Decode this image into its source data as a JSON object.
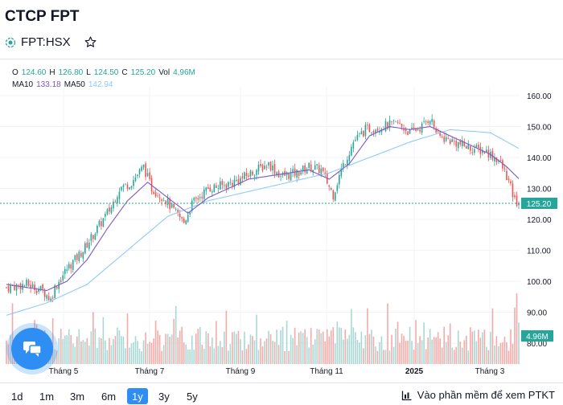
{
  "header": {
    "company_title": "CTCP FPT",
    "ticker": "FPT:HSX"
  },
  "ohlc": {
    "open_label": "O",
    "open": "124.60",
    "high_label": "H",
    "high": "126.80",
    "low_label": "L",
    "low": "124.50",
    "close_label": "C",
    "close": "125.20",
    "vol_label": "Vol",
    "vol": "4,96M"
  },
  "ma": {
    "ma10_label": "MA10",
    "ma10": "133.18",
    "ma50_label": "MA50",
    "ma50": "142.94"
  },
  "colors": {
    "up": "#26a69a",
    "down": "#ef5350",
    "ma10": "#7e57c2",
    "ma50": "#90caf9",
    "accent": "#2f8ef4"
  },
  "chart_data": {
    "type": "candlestick",
    "price_axis": {
      "min": 80,
      "max": 160,
      "ticks": [
        "160.00",
        "150.00",
        "140.00",
        "130.00",
        "120.00",
        "110.00",
        "100.00",
        "90.00",
        "80.00"
      ]
    },
    "time_labels": [
      "Tháng 5",
      "Tháng 7",
      "Tháng 9",
      "Tháng 11",
      "2025",
      "Tháng 3"
    ],
    "last_price_label": "125.20",
    "last_volume_label": "4.96M",
    "price_path": [
      {
        "idx": 0,
        "price": 98
      },
      {
        "idx": 10,
        "price": 99
      },
      {
        "idx": 18,
        "price": 97
      },
      {
        "idx": 22,
        "price": 94
      },
      {
        "idx": 24,
        "price": 98
      },
      {
        "idx": 30,
        "price": 104
      },
      {
        "idx": 38,
        "price": 110
      },
      {
        "idx": 46,
        "price": 118
      },
      {
        "idx": 52,
        "price": 124
      },
      {
        "idx": 56,
        "price": 130
      },
      {
        "idx": 62,
        "price": 132
      },
      {
        "idx": 68,
        "price": 137
      },
      {
        "idx": 72,
        "price": 130
      },
      {
        "idx": 78,
        "price": 127
      },
      {
        "idx": 84,
        "price": 122
      },
      {
        "idx": 88,
        "price": 119
      },
      {
        "idx": 92,
        "price": 125
      },
      {
        "idx": 100,
        "price": 130
      },
      {
        "idx": 108,
        "price": 131
      },
      {
        "idx": 116,
        "price": 133
      },
      {
        "idx": 124,
        "price": 136
      },
      {
        "idx": 130,
        "price": 138
      },
      {
        "idx": 136,
        "price": 134
      },
      {
        "idx": 144,
        "price": 135
      },
      {
        "idx": 150,
        "price": 137
      },
      {
        "idx": 156,
        "price": 136
      },
      {
        "idx": 162,
        "price": 128
      },
      {
        "idx": 166,
        "price": 136
      },
      {
        "idx": 172,
        "price": 145
      },
      {
        "idx": 178,
        "price": 149
      },
      {
        "idx": 186,
        "price": 150
      },
      {
        "idx": 194,
        "price": 151
      },
      {
        "idx": 200,
        "price": 148
      },
      {
        "idx": 206,
        "price": 150
      },
      {
        "idx": 210,
        "price": 153
      },
      {
        "idx": 214,
        "price": 147
      },
      {
        "idx": 222,
        "price": 145
      },
      {
        "idx": 230,
        "price": 143
      },
      {
        "idx": 238,
        "price": 142
      },
      {
        "idx": 244,
        "price": 139
      },
      {
        "idx": 248,
        "price": 134
      },
      {
        "idx": 252,
        "price": 126
      },
      {
        "idx": 254,
        "price": 125.2
      }
    ],
    "ma10_path": [
      {
        "idx": 0,
        "price": 99
      },
      {
        "idx": 20,
        "price": 97
      },
      {
        "idx": 30,
        "price": 100
      },
      {
        "idx": 40,
        "price": 107
      },
      {
        "idx": 50,
        "price": 117
      },
      {
        "idx": 60,
        "price": 126
      },
      {
        "idx": 70,
        "price": 132
      },
      {
        "idx": 80,
        "price": 127
      },
      {
        "idx": 90,
        "price": 122
      },
      {
        "idx": 100,
        "price": 127
      },
      {
        "idx": 110,
        "price": 130
      },
      {
        "idx": 120,
        "price": 133
      },
      {
        "idx": 130,
        "price": 134
      },
      {
        "idx": 140,
        "price": 135
      },
      {
        "idx": 150,
        "price": 136
      },
      {
        "idx": 160,
        "price": 133
      },
      {
        "idx": 170,
        "price": 138
      },
      {
        "idx": 180,
        "price": 147
      },
      {
        "idx": 190,
        "price": 150
      },
      {
        "idx": 200,
        "price": 149
      },
      {
        "idx": 210,
        "price": 150
      },
      {
        "idx": 220,
        "price": 147
      },
      {
        "idx": 230,
        "price": 144
      },
      {
        "idx": 240,
        "price": 141
      },
      {
        "idx": 248,
        "price": 137
      },
      {
        "idx": 254,
        "price": 133.18
      }
    ],
    "ma50_path": [
      {
        "idx": 0,
        "price": 89
      },
      {
        "idx": 20,
        "price": 93
      },
      {
        "idx": 40,
        "price": 99
      },
      {
        "idx": 60,
        "price": 110
      },
      {
        "idx": 80,
        "price": 121
      },
      {
        "idx": 100,
        "price": 126
      },
      {
        "idx": 120,
        "price": 129
      },
      {
        "idx": 140,
        "price": 132
      },
      {
        "idx": 160,
        "price": 135
      },
      {
        "idx": 180,
        "price": 140
      },
      {
        "idx": 200,
        "price": 145
      },
      {
        "idx": 220,
        "price": 149
      },
      {
        "idx": 240,
        "price": 148
      },
      {
        "idx": 254,
        "price": 142.94
      }
    ],
    "bar_count": 255
  },
  "timeframes": [
    "1d",
    "1m",
    "3m",
    "6m",
    "1y",
    "3y",
    "5y"
  ],
  "active_timeframe": "1y",
  "footer": {
    "tech_analysis_link": "Vào phần mềm để xem PTKT"
  }
}
